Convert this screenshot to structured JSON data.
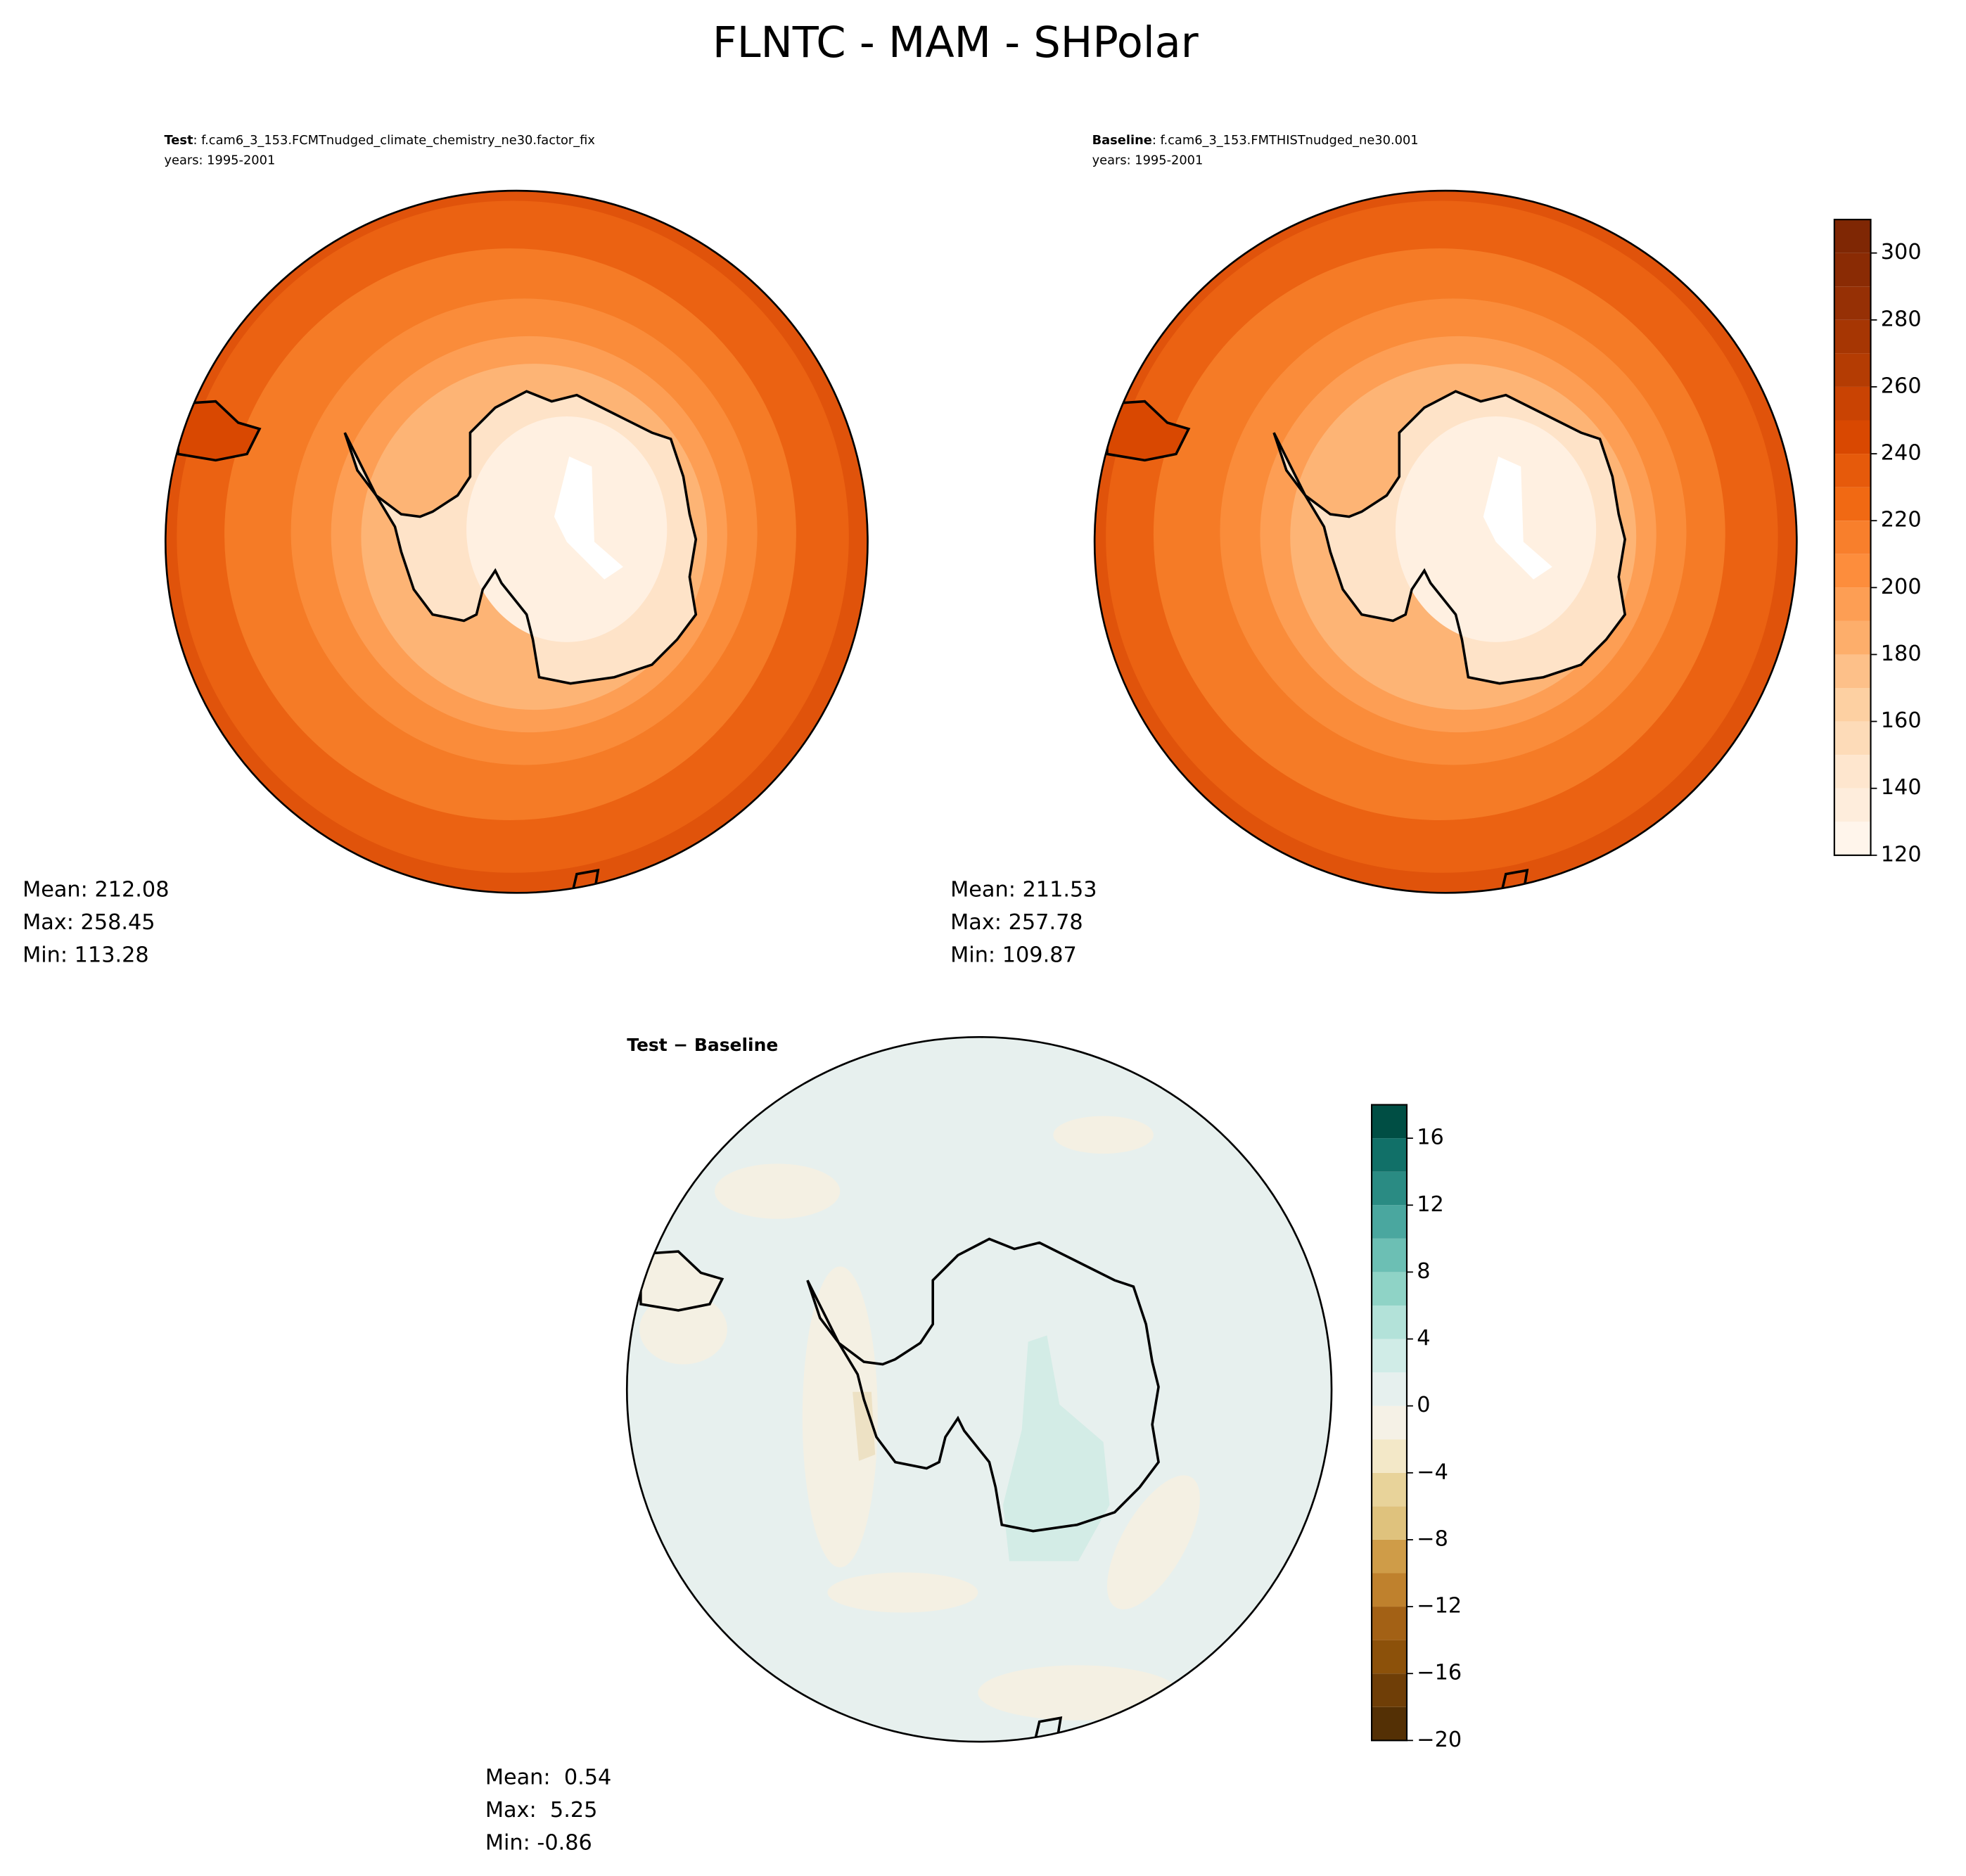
{
  "title": "FLNTC - MAM - SHPolar",
  "panels": [
    {
      "label": "Test",
      "case": ": f.cam6_3_153.FCMTnudged_climate_chemistry_ne30.factor_fix",
      "years": "years: 1995-2001",
      "stats": [
        "Mean: 212.08",
        "Max: 258.45",
        "Min: 113.28"
      ]
    },
    {
      "label": "Baseline",
      "case": ": f.cam6_3_153.FMTHISTnudged_ne30.001",
      "years": "years: 1995-2001",
      "stats": [
        "Mean: 211.53",
        "Max: 257.78",
        "Min: 109.87"
      ]
    },
    {
      "label": "Test − Baseline",
      "stats": [
        "Mean:  0.54",
        "Max:  5.25",
        "Min: -0.86"
      ]
    }
  ],
  "colorbars": [
    {
      "lim": [
        120,
        310
      ],
      "ticks": [
        120,
        140,
        160,
        180,
        200,
        220,
        240,
        260,
        280,
        300
      ],
      "levels": [
        120,
        130,
        140,
        150,
        160,
        170,
        180,
        190,
        200,
        210,
        220,
        230,
        240,
        250,
        260,
        270,
        280,
        290,
        300,
        310
      ],
      "colors": [
        "#fff5eb",
        "#feeddc",
        "#fee6ce",
        "#fddbb8",
        "#fdd0a2",
        "#fdc089",
        "#fdae6b",
        "#fd9e54",
        "#fd8d3c",
        "#f87f2c",
        "#f16913",
        "#e65a0b",
        "#d94801",
        "#c94303",
        "#b43c03",
        "#a63603",
        "#963005",
        "#8a2b04",
        "#7f2704"
      ]
    },
    {
      "lim": [
        -20,
        18
      ],
      "ticks": [
        {
          "value": -20,
          "label": "−20"
        },
        {
          "value": -16,
          "label": "−16"
        },
        {
          "value": -12,
          "label": "−12"
        },
        {
          "value": -8,
          "label": "−8"
        },
        {
          "value": -4,
          "label": "−4"
        },
        0,
        4,
        8,
        12,
        16
      ],
      "levels": [
        -20,
        -18,
        -16,
        -14,
        -12,
        -10,
        -8,
        -6,
        -4,
        -2,
        0,
        2,
        4,
        6,
        8,
        10,
        12,
        14,
        16,
        18
      ],
      "colors": [
        "#543005",
        "#6f3e07",
        "#8c510a",
        "#a36115",
        "#bf812d",
        "#cf9c48",
        "#dfc27d",
        "#e8d39a",
        "#f3e8c8",
        "#f5f1e6",
        "#e6f0ee",
        "#d0ece7",
        "#b3e2d9",
        "#8fd3c6",
        "#6cbfb4",
        "#4aa79f",
        "#2a8b83",
        "#117068",
        "#004e44"
      ]
    }
  ]
}
